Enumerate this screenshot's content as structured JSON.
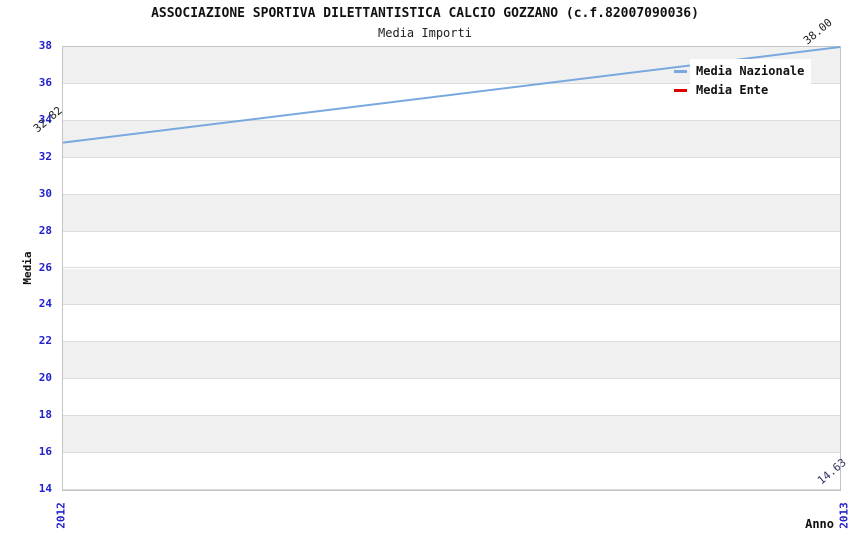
{
  "chart_data": {
    "type": "line",
    "title": "ASSOCIAZIONE SPORTIVA DILETTANTISTICA CALCIO GOZZANO (c.f.82007090036)",
    "subtitle": "Media Importi",
    "xlabel": "Anno",
    "ylabel": "Media",
    "categories": [
      "2012",
      "2013"
    ],
    "ylim": [
      14,
      38
    ],
    "ytick_step": 2,
    "yticks": [
      38,
      36,
      34,
      32,
      30,
      28,
      26,
      24,
      22,
      20,
      18,
      16,
      14
    ],
    "grid": "alternating-horizontal-bands",
    "legend_position": "top-right",
    "series": [
      {
        "name": "Media Nazionale",
        "color": "#79A8DF",
        "values": [
          32.82,
          38.0
        ],
        "point_labels": [
          "32.82",
          "38.00"
        ],
        "label_color": "#1a1a1a"
      },
      {
        "name": "Media Ente",
        "color": "#DD0000",
        "values": [
          null,
          14.63
        ],
        "point_labels": [
          null,
          "14.63"
        ],
        "label_color": "#333366"
      }
    ]
  },
  "colors": {
    "axis_tick_label": "#2222CC",
    "band_fill": "#F0F0F0",
    "band_border": "#DCDCDC",
    "plot_border": "#C4C4C4",
    "legend_background": "#FFFFFF"
  }
}
